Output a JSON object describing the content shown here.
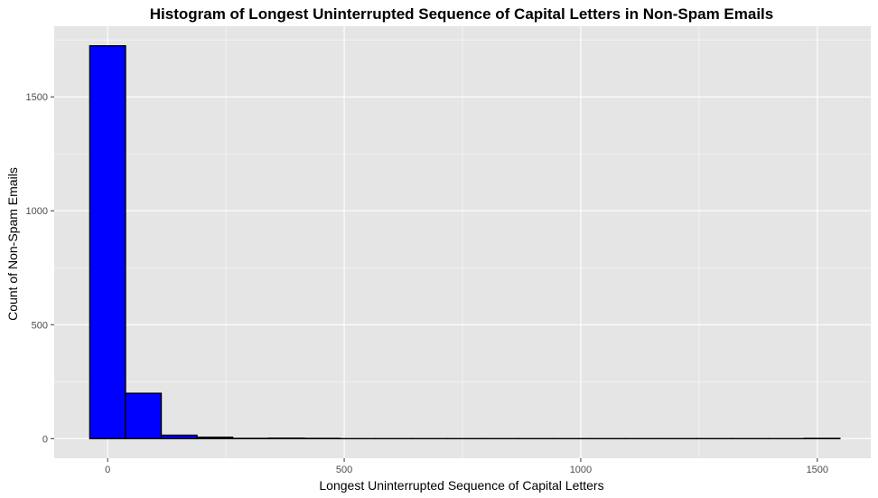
{
  "chart_data": {
    "type": "bar",
    "title": "Histogram of Longest Uninterrupted Sequence of Capital Letters in Non-Spam Emails",
    "xlabel": "Longest Uninterrupted Sequence of Capital Letters",
    "ylabel": "Count of Non-Spam Emails",
    "xlim": [
      -113,
      1613
    ],
    "ylim": [
      -86,
      1810
    ],
    "x_ticks": [
      0,
      500,
      1000,
      1500
    ],
    "x_tick_labels": [
      "0",
      "500",
      "1000",
      "1500"
    ],
    "y_ticks": [
      0,
      500,
      1000,
      1500
    ],
    "y_tick_labels": [
      "0",
      "500",
      "1000",
      "1500"
    ],
    "bin_width": 75.5,
    "bins": [
      {
        "start": -37.75,
        "end": 37.75,
        "count": 1724
      },
      {
        "start": 37.75,
        "end": 113.25,
        "count": 199
      },
      {
        "start": 113.25,
        "end": 188.75,
        "count": 15
      },
      {
        "start": 188.75,
        "end": 264.25,
        "count": 6
      },
      {
        "start": 264.25,
        "end": 339.75,
        "count": 1
      },
      {
        "start": 339.75,
        "end": 415.25,
        "count": 2
      },
      {
        "start": 415.25,
        "end": 490.75,
        "count": 1
      },
      {
        "start": 490.75,
        "end": 566.25,
        "count": 0
      },
      {
        "start": 566.25,
        "end": 641.75,
        "count": 0
      },
      {
        "start": 641.75,
        "end": 717.25,
        "count": 0
      },
      {
        "start": 717.25,
        "end": 792.75,
        "count": 0
      },
      {
        "start": 792.75,
        "end": 868.25,
        "count": 0
      },
      {
        "start": 868.25,
        "end": 943.75,
        "count": 0
      },
      {
        "start": 943.75,
        "end": 1019.25,
        "count": 0
      },
      {
        "start": 1019.25,
        "end": 1094.75,
        "count": 0
      },
      {
        "start": 1094.75,
        "end": 1170.25,
        "count": 0
      },
      {
        "start": 1170.25,
        "end": 1245.75,
        "count": 0
      },
      {
        "start": 1245.75,
        "end": 1321.25,
        "count": 0
      },
      {
        "start": 1321.25,
        "end": 1396.75,
        "count": 0
      },
      {
        "start": 1396.75,
        "end": 1472.25,
        "count": 0
      },
      {
        "start": 1472.25,
        "end": 1547.75,
        "count": 1
      }
    ],
    "colors": {
      "bar_fill": "#0000ff",
      "bar_outline": "#000000",
      "panel_background": "#e5e5e5",
      "grid": "#ffffff"
    },
    "grid": true,
    "legend": "none"
  }
}
